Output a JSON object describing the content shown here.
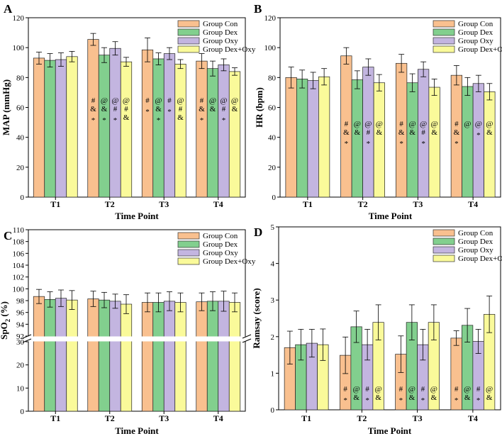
{
  "chart_data": [
    {
      "panel": "A",
      "type": "bar",
      "ylabel": "MAP (mmHg)",
      "xlabel": "Time Point",
      "ylim": [
        0,
        120
      ],
      "yticks": [
        0,
        20,
        40,
        60,
        80,
        100,
        120
      ],
      "categories": [
        "T1",
        "T2",
        "T3",
        "T4"
      ],
      "legend_position": "top-right",
      "series": [
        {
          "name": "Group Con",
          "color": "#f9c08f",
          "values": [
            93,
            105.5,
            98.5,
            91
          ],
          "errors": [
            4,
            4,
            8,
            5
          ]
        },
        {
          "name": "Group Dex",
          "color": "#82cf8e",
          "values": [
            91.5,
            95,
            92.5,
            86
          ],
          "errors": [
            4.5,
            5,
            4,
            5
          ]
        },
        {
          "name": "Group Oxy",
          "color": "#c3b5e0",
          "values": [
            92,
            99.5,
            96,
            88.5
          ],
          "errors": [
            4.5,
            4.5,
            4,
            4
          ]
        },
        {
          "name": "Group Dex+Oxy",
          "color": "#fafa9a",
          "values": [
            94,
            90.5,
            89,
            84
          ],
          "errors": [
            3.5,
            3,
            3,
            2.5
          ]
        }
      ],
      "annotations": [
        [
          "",
          "",
          "",
          ""
        ],
        [
          "#\n&\n*",
          "@\n&\n*",
          "@\n#\n*",
          "@\n#\n&"
        ],
        [
          "#\n*",
          "@\n&\n*",
          "#\n*",
          "@\n#\n&"
        ],
        [
          "#\n&\n*",
          "@\n&",
          "@\n#\n*",
          "@\n&"
        ]
      ]
    },
    {
      "panel": "B",
      "type": "bar",
      "ylabel": "HR (bpm)",
      "xlabel": "Time Point",
      "ylim": [
        0,
        120
      ],
      "yticks": [
        0,
        20,
        40,
        60,
        80,
        100,
        120
      ],
      "categories": [
        "T1",
        "T2",
        "T3",
        "T4"
      ],
      "legend_position": "top-right",
      "series": [
        {
          "name": "Group Con",
          "color": "#f9c08f",
          "values": [
            80,
            94.5,
            89.5,
            81.5
          ],
          "errors": [
            7,
            5.5,
            6,
            6.5
          ]
        },
        {
          "name": "Group Dex",
          "color": "#82cf8e",
          "values": [
            79,
            78.5,
            76.5,
            74
          ],
          "errors": [
            6,
            6,
            6,
            6
          ]
        },
        {
          "name": "Group Oxy",
          "color": "#c3b5e0",
          "values": [
            78,
            87,
            85.5,
            76
          ],
          "errors": [
            5.5,
            5.5,
            5,
            5.5
          ]
        },
        {
          "name": "Group Dex+Oxy",
          "color": "#fafa9a",
          "values": [
            80.5,
            76.5,
            73.5,
            70.5
          ],
          "errors": [
            5.5,
            5.5,
            5.5,
            5.5
          ]
        }
      ],
      "annotations": [
        [
          "",
          "",
          "",
          ""
        ],
        [
          "#\n&\n*",
          "@\n&",
          "@\n#\n*",
          "@\n&"
        ],
        [
          "#\n&\n*",
          "@\n&",
          "@\n#\n*",
          "@\n&"
        ],
        [
          "#\n&\n*",
          "@",
          "@\n*",
          "@\n&"
        ]
      ]
    },
    {
      "panel": "C",
      "type": "bar",
      "ylabel_prefix": "SpO",
      "ylabel_sub": "2",
      "ylabel_suffix": " (%)",
      "xlabel": "Time Point",
      "axis_break": true,
      "ylim_lower": [
        0,
        30
      ],
      "ylim_upper": [
        92,
        110
      ],
      "yticks_lower": [
        0,
        10,
        20,
        30
      ],
      "yticks_upper": [
        92,
        94,
        96,
        98,
        100,
        102,
        104,
        106,
        108,
        110
      ],
      "categories": [
        "T1",
        "T2",
        "T3",
        "T4"
      ],
      "legend_position": "top-right",
      "series": [
        {
          "name": "Group Con",
          "color": "#f9c08f",
          "values": [
            98.7,
            98.3,
            97.7,
            97.8
          ],
          "errors": [
            1.2,
            1.3,
            1.6,
            1.5
          ]
        },
        {
          "name": "Group Dex",
          "color": "#82cf8e",
          "values": [
            98.2,
            98.1,
            97.7,
            97.9
          ],
          "errors": [
            1.3,
            1.3,
            1.6,
            1.6
          ]
        },
        {
          "name": "Group Oxy",
          "color": "#c3b5e0",
          "values": [
            98.4,
            97.9,
            97.9,
            97.9
          ],
          "errors": [
            1.4,
            1.2,
            1.6,
            1.7
          ]
        },
        {
          "name": "Group Dex+Oxy",
          "color": "#fafa9a",
          "values": [
            98.1,
            97.4,
            97.7,
            97.7
          ],
          "errors": [
            1.6,
            1.6,
            1.6,
            1.6
          ]
        }
      ]
    },
    {
      "panel": "D",
      "type": "bar",
      "ylabel": "Ramsay (score)",
      "xlabel": "Time Point",
      "ylim": [
        0,
        5
      ],
      "yticks": [
        0,
        1,
        2,
        3,
        4,
        5
      ],
      "categories": [
        "T1",
        "T2",
        "T3",
        "T4"
      ],
      "legend_position": "top-right",
      "series": [
        {
          "name": "Group Con",
          "color": "#f9c08f",
          "values": [
            1.7,
            1.49,
            1.52,
            1.96
          ],
          "errors": [
            0.45,
            0.5,
            0.5,
            0.2
          ]
        },
        {
          "name": "Group Dex",
          "color": "#82cf8e",
          "values": [
            1.78,
            2.27,
            2.39,
            2.31
          ],
          "errors": [
            0.42,
            0.43,
            0.48,
            0.46
          ]
        },
        {
          "name": "Group Oxy",
          "color": "#c3b5e0",
          "values": [
            1.82,
            1.78,
            1.78,
            1.87
          ],
          "errors": [
            0.38,
            0.42,
            0.42,
            0.33
          ]
        },
        {
          "name": "Group Dex+Oxy",
          "color": "#fafa9a",
          "values": [
            1.78,
            2.39,
            2.39,
            2.61
          ],
          "errors": [
            0.43,
            0.48,
            0.48,
            0.5
          ]
        }
      ],
      "annotations": [
        [
          "",
          "",
          "",
          ""
        ],
        [
          "#\n*",
          "@\n&",
          "#\n*",
          "@\n&"
        ],
        [
          "#\n*",
          "@\n&",
          "#\n*",
          "@\n&"
        ],
        [
          "#\n*",
          "@\n&",
          "#\n*",
          "@\n&"
        ]
      ]
    }
  ]
}
